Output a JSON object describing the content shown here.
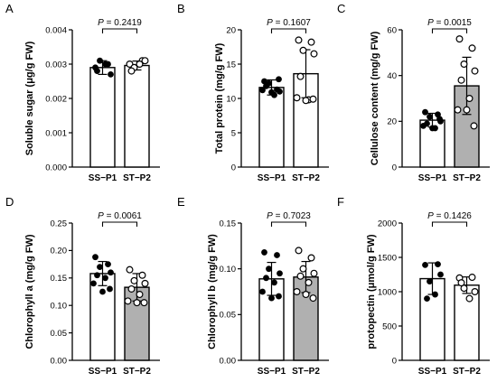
{
  "chart_data": [
    {
      "panel": "A",
      "type": "bar",
      "ylabel": "Soluble sugar (μg/g FW)",
      "categories": [
        "SS−P1",
        "ST−P2"
      ],
      "ylim": [
        0,
        0.004
      ],
      "yticks": [
        0.0,
        0.001,
        0.002,
        0.003,
        0.004
      ],
      "ytick_labels": [
        "0.000",
        "0.001",
        "0.002",
        "0.003",
        "0.004"
      ],
      "series": [
        {
          "category": "SS−P1",
          "fill": "#ffffff",
          "marker": "filled",
          "mean": 0.0029,
          "sd": 0.0002,
          "points": [
            0.0029,
            0.003,
            0.0031,
            0.0027,
            0.0028,
            0.003
          ]
        },
        {
          "category": "ST−P2",
          "fill": "#ffffff",
          "marker": "open",
          "mean": 0.00296,
          "sd": 0.00013,
          "points": [
            0.003,
            0.0031,
            0.0029,
            0.0031,
            0.0028,
            0.003
          ]
        }
      ],
      "p_label": "P = 0.2419"
    },
    {
      "panel": "B",
      "type": "bar",
      "ylabel": "Total protein (mg/g FW)",
      "categories": [
        "SS−P1",
        "ST−P2"
      ],
      "ylim": [
        0,
        20
      ],
      "yticks": [
        0,
        5,
        10,
        15,
        20
      ],
      "ytick_labels": [
        "0",
        "5",
        "10",
        "15",
        "20"
      ],
      "series": [
        {
          "category": "SS−P1",
          "fill": "#ffffff",
          "marker": "filled",
          "mean": 11.6,
          "sd": 1.1,
          "points": [
            12.5,
            11.3,
            12.2,
            11.0,
            11.8,
            10.5,
            11.2,
            12.8,
            10.9
          ]
        },
        {
          "category": "ST−P2",
          "fill": "#ffffff",
          "marker": "open",
          "mean": 13.6,
          "sd": 3.5,
          "points": [
            18.5,
            18.2,
            17.0,
            16.5,
            13.2,
            9.8,
            10.1,
            9.9,
            9.7
          ]
        }
      ],
      "p_label": "P = 0.1607"
    },
    {
      "panel": "C",
      "type": "bar",
      "ylabel": "Cellulose content (mg/g FW)",
      "categories": [
        "SS−P1",
        "ST−P2"
      ],
      "ylim": [
        0,
        60
      ],
      "yticks": [
        0,
        20,
        40,
        60
      ],
      "ytick_labels": [
        "0",
        "20",
        "40",
        "60"
      ],
      "series": [
        {
          "category": "SS−P1",
          "fill": "#ffffff",
          "marker": "filled",
          "mean": 20.5,
          "sd": 3.0,
          "points": [
            24,
            23,
            22,
            20,
            19,
            17,
            18,
            21,
            17
          ]
        },
        {
          "category": "ST−P2",
          "fill": "#b0b0b0",
          "marker": "open",
          "mean": 35.5,
          "sd": 12.5,
          "points": [
            56,
            52,
            45,
            42,
            38,
            30,
            25,
            18,
            25
          ]
        }
      ],
      "p_label": "P = 0.0015"
    },
    {
      "panel": "D",
      "type": "bar",
      "ylabel": "Chlorophyll a (mg/g FW)",
      "categories": [
        "SS−P1",
        "ST−P2"
      ],
      "ylim": [
        0,
        0.25
      ],
      "yticks": [
        0.0,
        0.05,
        0.1,
        0.15,
        0.2,
        0.25
      ],
      "ytick_labels": [
        "0.00",
        "0.05",
        "0.10",
        "0.15",
        "0.20",
        "0.25"
      ],
      "series": [
        {
          "category": "SS−P1",
          "fill": "#ffffff",
          "marker": "filled",
          "mean": 0.158,
          "sd": 0.022,
          "points": [
            0.188,
            0.175,
            0.17,
            0.16,
            0.155,
            0.15,
            0.14,
            0.13,
            0.125
          ]
        },
        {
          "category": "ST−P2",
          "fill": "#b0b0b0",
          "marker": "open",
          "mean": 0.133,
          "sd": 0.025,
          "points": [
            0.165,
            0.155,
            0.145,
            0.14,
            0.13,
            0.12,
            0.108,
            0.105,
            0.105
          ]
        }
      ],
      "p_label": "P = 0.0061"
    },
    {
      "panel": "E",
      "type": "bar",
      "ylabel": "Chlorophyll b (mg/g FW)",
      "categories": [
        "SS−P1",
        "ST−P2"
      ],
      "ylim": [
        0,
        0.15
      ],
      "yticks": [
        0.0,
        0.05,
        0.1,
        0.15
      ],
      "ytick_labels": [
        "0.00",
        "0.05",
        "0.10",
        "0.15"
      ],
      "series": [
        {
          "category": "SS−P1",
          "fill": "#ffffff",
          "marker": "filled",
          "mean": 0.089,
          "sd": 0.018,
          "points": [
            0.118,
            0.115,
            0.1,
            0.095,
            0.09,
            0.085,
            0.075,
            0.07,
            0.068
          ]
        },
        {
          "category": "ST−P2",
          "fill": "#b0b0b0",
          "marker": "open",
          "mean": 0.091,
          "sd": 0.017,
          "points": [
            0.12,
            0.112,
            0.1,
            0.095,
            0.092,
            0.085,
            0.075,
            0.068,
            0.072
          ]
        }
      ],
      "p_label": "P = 0.7023"
    },
    {
      "panel": "F",
      "type": "bar",
      "ylabel": "protopectin (μmol/g FW)",
      "categories": [
        "SS−P1",
        "ST−P2"
      ],
      "ylim": [
        0,
        2000
      ],
      "yticks": [
        0,
        500,
        1000,
        1500,
        2000
      ],
      "ytick_labels": [
        "0",
        "500",
        "1000",
        "1500",
        "2000"
      ],
      "series": [
        {
          "category": "SS−P1",
          "fill": "#ffffff",
          "marker": "filled",
          "mean": 1190,
          "sd": 230,
          "points": [
            1390,
            1400,
            1150,
            1250,
            900,
            960
          ]
        },
        {
          "category": "ST−P2",
          "fill": "#ffffff",
          "marker": "open",
          "mean": 1095,
          "sd": 120,
          "points": [
            1200,
            1210,
            1050,
            1000,
            1130,
            900
          ]
        }
      ],
      "p_label": "P = 0.1426"
    }
  ]
}
